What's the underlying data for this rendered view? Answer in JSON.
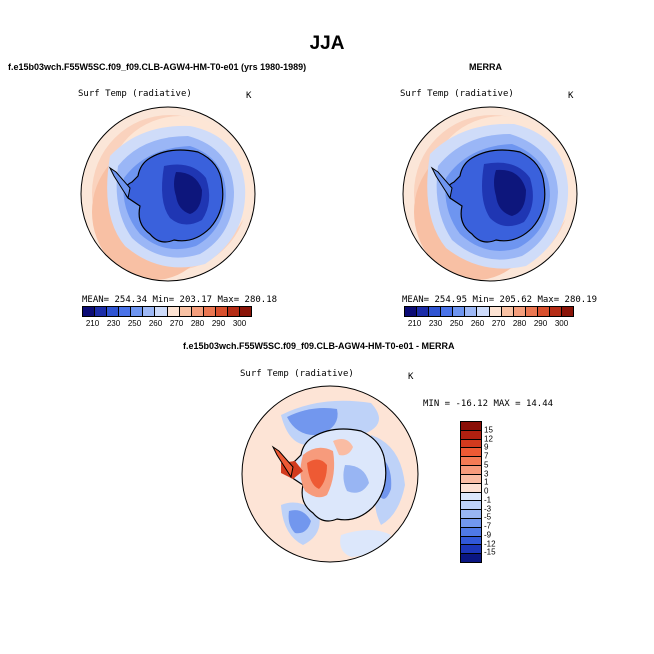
{
  "page_title": "JJA",
  "panels": [
    {
      "subtitle": "f.e15b03wch.F55W5SC.f09_f09.CLB-AGW4-HM-T0-e01 (yrs 1980-1989)",
      "variable": "Surf Temp (radiative)",
      "units": "K",
      "stats": "MEAN= 254.34   Min= 203.17   Max= 280.18"
    },
    {
      "subtitle": "MERRA",
      "variable": "Surf Temp (radiative)",
      "units": "K",
      "stats": "MEAN= 254.95   Min= 205.62   Max= 280.19"
    },
    {
      "subtitle": "f.e15b03wch.F55W5SC.f09_f09.CLB-AGW4-HM-T0-e01 - MERRA",
      "variable": "Surf Temp (radiative)",
      "units": "K",
      "stats": "MIN = -16.12  MAX =  14.44"
    }
  ],
  "abs_colorbar": {
    "colors": [
      "#0b0b75",
      "#1b2ca8",
      "#2f54d2",
      "#4a73e8",
      "#6e95f0",
      "#9db8f6",
      "#cddbfa",
      "#fde3d3",
      "#f9c2a4",
      "#f49e7c",
      "#ea7752",
      "#d8502e",
      "#b52d16",
      "#8a1408"
    ],
    "ticks": [
      "210",
      "230",
      "250",
      "260",
      "270",
      "280",
      "290",
      "300"
    ]
  },
  "diff_colorbar": {
    "colors": [
      "#8a0e06",
      "#b02010",
      "#d23a1e",
      "#ee5a34",
      "#f47b55",
      "#f79b7c",
      "#fabca3",
      "#fde0d2",
      "#dce7fb",
      "#bed2f8",
      "#98b5f3",
      "#7297ee",
      "#4f79e6",
      "#3158d8",
      "#1c36b9",
      "#0a1682"
    ],
    "ticks": [
      "15",
      "12",
      "9",
      "7",
      "5",
      "3",
      "1",
      "0",
      "-1",
      "-3",
      "-5",
      "-7",
      "-9",
      "-12",
      "-15"
    ]
  },
  "maps": [
    {
      "ocean": [
        "#fbe6d8",
        "#fad2bd",
        "#f8c0a4",
        "#f6b092"
      ],
      "land": [
        "#9ab6f6",
        "#6e95f0",
        "#3a61dc",
        "#1f36b3",
        "#0d167c"
      ]
    },
    {
      "ocean": [
        "#fbe6d8",
        "#fad2bd",
        "#f8c0a4",
        "#f6b092"
      ],
      "land": [
        "#9ab6f6",
        "#6e95f0",
        "#3a61dc",
        "#1f36b3",
        "#0d167c"
      ]
    },
    {
      "ocean": "#fde4d6"
    }
  ]
}
